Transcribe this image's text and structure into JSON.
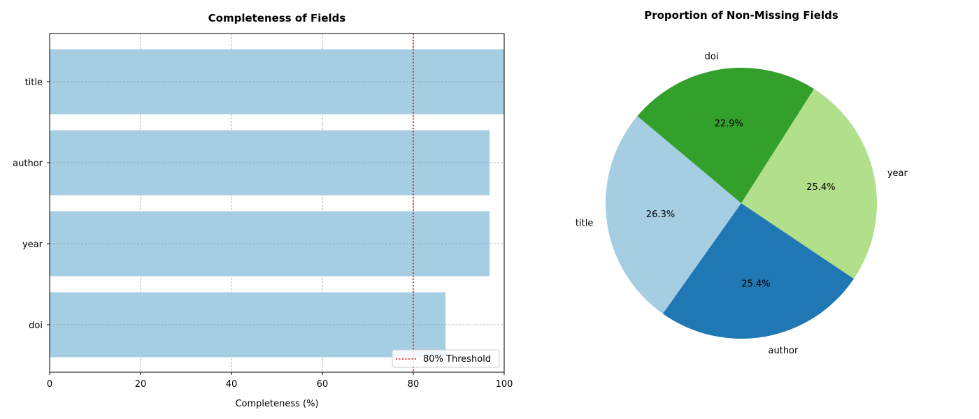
{
  "chart_data": [
    {
      "type": "bar",
      "orientation": "horizontal",
      "title": "Completeness of Fields",
      "xlabel": "Completeness (%)",
      "ylabel": "",
      "categories": [
        "title",
        "author",
        "year",
        "doi"
      ],
      "values": [
        100,
        96.8,
        96.8,
        87.1
      ],
      "xlim": [
        0,
        100
      ],
      "xticks": [
        "0",
        "20",
        "40",
        "60",
        "80",
        "100"
      ],
      "bar_color": "#a6cee3",
      "grid": true,
      "threshold": {
        "value": 80,
        "label": "80% Threshold",
        "color": "#ff0000"
      },
      "legend_position": "lower-right"
    },
    {
      "type": "pie",
      "title": "Proportion of Non-Missing Fields",
      "slices": [
        {
          "label": "title",
          "value": 26.3,
          "pct_label": "26.3%",
          "color": "#a6cee3"
        },
        {
          "label": "author",
          "value": 25.4,
          "pct_label": "25.4%",
          "color": "#1f78b4"
        },
        {
          "label": "year",
          "value": 25.4,
          "pct_label": "25.4%",
          "color": "#b2df8a"
        },
        {
          "label": "doi",
          "value": 22.9,
          "pct_label": "22.9%",
          "color": "#33a02c"
        }
      ],
      "start_angle_deg": 140
    }
  ]
}
